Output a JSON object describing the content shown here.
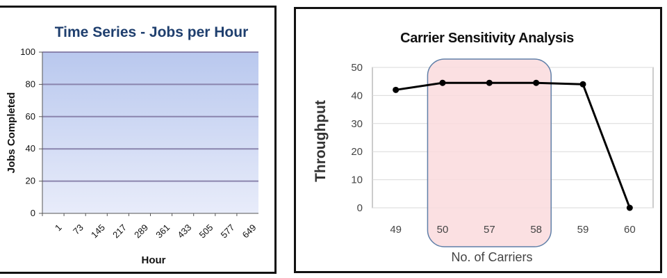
{
  "chart_data": [
    {
      "type": "line",
      "title": "Time Series - Jobs per Hour",
      "xlabel": "Hour",
      "ylabel": "Jobs Completed",
      "categories": [
        "1",
        "73",
        "145",
        "217",
        "289",
        "361",
        "433",
        "505",
        "577",
        "649"
      ],
      "yticks": [
        "0",
        "20",
        "40",
        "60",
        "80",
        "100"
      ],
      "ylim": [
        0,
        100
      ],
      "series": [],
      "grid": true,
      "colors": {
        "plot_top": "#b9c8ee",
        "plot_bottom": "#e8ecfa",
        "gridline": "#8a84ad",
        "title": "#1f3f6e"
      }
    },
    {
      "type": "line",
      "title": "Carrier Sensitivity Analysis",
      "xlabel": "No. of Carriers",
      "ylabel": "Throughput",
      "categories": [
        "49",
        "50",
        "57",
        "58",
        "59",
        "60"
      ],
      "yticks": [
        "0",
        "10",
        "20",
        "30",
        "40",
        "50"
      ],
      "ylim": [
        0,
        50
      ],
      "series": [
        {
          "values": [
            42,
            44.5,
            44.5,
            44.5,
            44,
            0
          ]
        }
      ],
      "highlight": {
        "from": "50",
        "to": "58",
        "fill": "#fadadd",
        "stroke": "#5f7fa8"
      },
      "grid": true,
      "colors": {
        "line": "#000000",
        "gridline": "#d9d9d9"
      }
    }
  ]
}
